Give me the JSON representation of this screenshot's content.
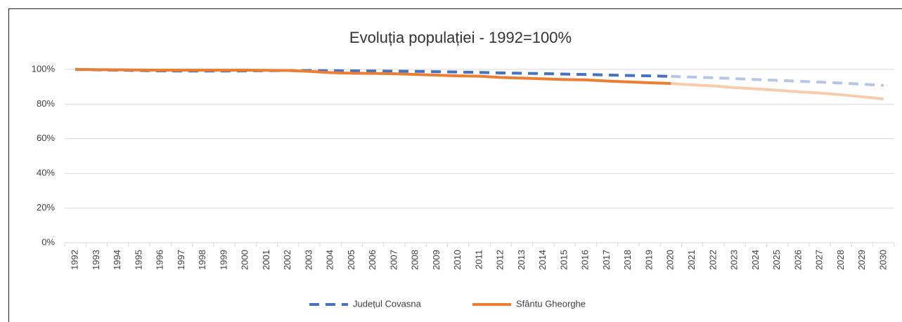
{
  "chart_data": {
    "type": "line",
    "title": "Evoluția populației - 1992=100%",
    "categories": [
      "1992",
      "1993",
      "1994",
      "1995",
      "1996",
      "1997",
      "1998",
      "1999",
      "2000",
      "2001",
      "2002",
      "2003",
      "2004",
      "2005",
      "2006",
      "2007",
      "2008",
      "2009",
      "2010",
      "2011",
      "2012",
      "2013",
      "2014",
      "2015",
      "2016",
      "2017",
      "2018",
      "2019",
      "2020",
      "2021",
      "2022",
      "2023",
      "2024",
      "2025",
      "2026",
      "2027",
      "2028",
      "2029",
      "2030"
    ],
    "series": [
      {
        "name": "Județul Covasna",
        "color": "#4472c4",
        "projected_color": "#b4c7e7",
        "dashed": true,
        "values": [
          100,
          99.8,
          99.6,
          99.4,
          99.2,
          99.1,
          99.1,
          99.1,
          99.2,
          99.3,
          99.4,
          99.4,
          99.3,
          99.2,
          99.1,
          99.0,
          98.9,
          98.7,
          98.5,
          98.3,
          98.0,
          97.8,
          97.6,
          97.3,
          97.1,
          96.8,
          96.5,
          96.3,
          96.0,
          95.6,
          95.2,
          94.7,
          94.2,
          93.7,
          93.2,
          92.7,
          92.1,
          91.5,
          90.8
        ]
      },
      {
        "name": "Sfântu Gheorghe",
        "color": "#ed7d31",
        "projected_color": "#f8cbad",
        "dashed": false,
        "values": [
          100,
          99.9,
          99.8,
          99.7,
          99.6,
          99.6,
          99.6,
          99.6,
          99.6,
          99.5,
          99.4,
          98.9,
          98.2,
          97.8,
          97.7,
          97.5,
          97.1,
          96.7,
          96.3,
          96.1,
          95.4,
          95.0,
          94.6,
          94.2,
          94.0,
          93.3,
          92.8,
          92.3,
          91.9,
          91.1,
          90.5,
          89.5,
          88.8,
          88.0,
          87.1,
          86.4,
          85.4,
          84.2,
          83.0
        ]
      }
    ],
    "projected_from": "2020",
    "ylim": [
      0,
      100
    ],
    "yticks": [
      {
        "value": 0,
        "label": "0%"
      },
      {
        "value": 20,
        "label": "20%"
      },
      {
        "value": 40,
        "label": "40%"
      },
      {
        "value": 60,
        "label": "60%"
      },
      {
        "value": 80,
        "label": "80%"
      },
      {
        "value": 100,
        "label": "100%"
      }
    ],
    "grid": true,
    "legend": "bottom"
  }
}
